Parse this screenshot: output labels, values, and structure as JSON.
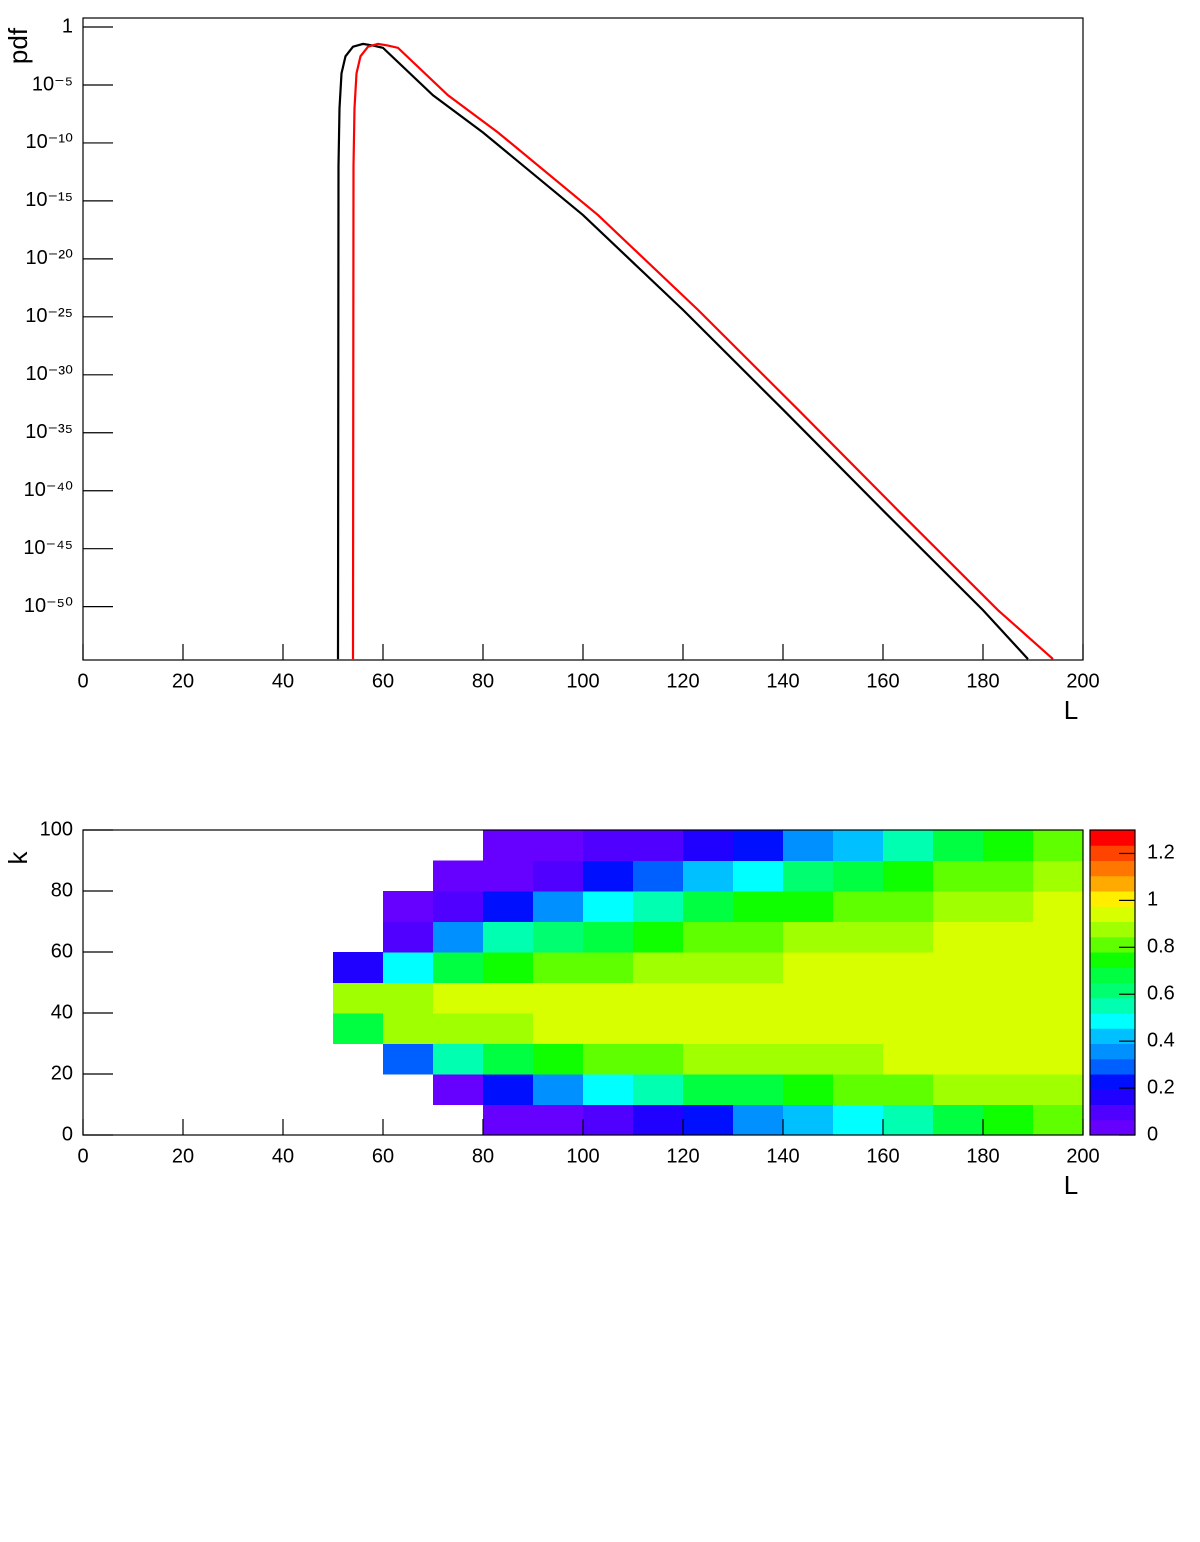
{
  "chart_data": [
    {
      "type": "line",
      "ylabel": "pdf",
      "xlabel": "L",
      "log_y": true,
      "xlim": [
        0,
        200
      ],
      "xticks": [
        0,
        20,
        40,
        60,
        80,
        100,
        120,
        140,
        160,
        180,
        200
      ],
      "ylim": [
        2.5e-55,
        6
      ],
      "yticks": [
        {
          "value": 1,
          "label": "1"
        },
        {
          "value": 1e-05,
          "label": "10⁻⁵"
        },
        {
          "value": 1e-10,
          "label": "10⁻¹⁰"
        },
        {
          "value": 1e-15,
          "label": "10⁻¹⁵"
        },
        {
          "value": 1e-20,
          "label": "10⁻²⁰"
        },
        {
          "value": 1e-25,
          "label": "10⁻²⁵"
        },
        {
          "value": 1e-30,
          "label": "10⁻³⁰"
        },
        {
          "value": 1e-35,
          "label": "10⁻³⁵"
        },
        {
          "value": 1e-40,
          "label": "10⁻⁴⁰"
        },
        {
          "value": 1e-45,
          "label": "10⁻⁴⁵"
        },
        {
          "value": 1e-50,
          "label": "10⁻⁵⁰"
        }
      ],
      "series": [
        {
          "color": "#000000",
          "x": [
            51,
            51.1,
            51.3,
            51.7,
            52.5,
            54,
            56,
            58,
            60,
            70,
            80,
            100,
            120,
            140,
            160,
            180,
            189
          ],
          "values": [
            3e-55,
            1e-12,
            1e-07,
            0.0001,
            0.003,
            0.02,
            0.035,
            0.025,
            0.016,
            1.3e-06,
            8e-10,
            6e-17,
            4e-25,
            1e-33,
            2e-42,
            5e-51,
            3e-55
          ]
        },
        {
          "color": "#ff0000",
          "x": [
            54,
            54.1,
            54.3,
            54.7,
            55.5,
            57,
            59,
            61,
            63,
            73,
            83,
            103,
            123,
            143,
            163,
            183,
            194
          ],
          "values": [
            3e-55,
            1e-12,
            1e-07,
            0.0001,
            0.003,
            0.02,
            0.035,
            0.025,
            0.016,
            1.3e-06,
            8e-10,
            6e-17,
            4e-25,
            1e-33,
            2e-42,
            5e-51,
            3e-55
          ]
        }
      ]
    },
    {
      "type": "heatmap",
      "ylabel": "k",
      "xlabel": "L",
      "xlim": [
        0,
        200
      ],
      "xticks": [
        0,
        20,
        40,
        60,
        80,
        100,
        120,
        140,
        160,
        180,
        200
      ],
      "ylim": [
        0,
        100
      ],
      "yticks": [
        0,
        20,
        40,
        60,
        80,
        100
      ],
      "xbins": [
        50,
        60,
        70,
        80,
        90,
        100,
        110,
        120,
        130,
        140,
        150,
        160,
        170,
        180,
        190,
        200
      ],
      "ybins": [
        0,
        10,
        20,
        30,
        40,
        50,
        60,
        70,
        80,
        90,
        100
      ],
      "z": [
        [
          null,
          null,
          null,
          0.02,
          0.05,
          0.1,
          0.17,
          0.25,
          0.33,
          0.42,
          0.5,
          0.58,
          0.66,
          0.72,
          0.78
        ],
        [
          null,
          null,
          0.05,
          0.2,
          0.35,
          0.47,
          0.57,
          0.65,
          0.7,
          0.75,
          0.79,
          0.82,
          0.85,
          0.87,
          0.9
        ],
        [
          null,
          0.3,
          0.55,
          0.67,
          0.74,
          0.78,
          0.82,
          0.85,
          0.87,
          0.89,
          0.9,
          0.91,
          0.92,
          0.93,
          0.94
        ],
        [
          0.7,
          0.85,
          0.88,
          0.9,
          0.91,
          0.92,
          0.93,
          0.93,
          0.94,
          0.94,
          0.95,
          0.95,
          0.95,
          0.96,
          0.96
        ],
        [
          0.85,
          0.9,
          0.92,
          0.93,
          0.94,
          0.94,
          0.95,
          0.95,
          0.95,
          0.96,
          0.96,
          0.96,
          0.97,
          0.97,
          0.97
        ],
        [
          0.15,
          0.5,
          0.68,
          0.76,
          0.8,
          0.84,
          0.86,
          0.88,
          0.9,
          0.91,
          0.92,
          0.93,
          0.94,
          0.95,
          0.95
        ],
        [
          null,
          0.12,
          0.35,
          0.52,
          0.63,
          0.7,
          0.76,
          0.8,
          0.83,
          0.86,
          0.88,
          0.9,
          0.92,
          0.93,
          0.94
        ],
        [
          null,
          0.02,
          0.1,
          0.22,
          0.35,
          0.47,
          0.57,
          0.65,
          0.72,
          0.77,
          0.8,
          0.84,
          0.87,
          0.9,
          0.92
        ],
        [
          null,
          null,
          0.02,
          0.06,
          0.12,
          0.2,
          0.3,
          0.4,
          0.5,
          0.6,
          0.67,
          0.73,
          0.78,
          0.82,
          0.86
        ],
        [
          null,
          null,
          null,
          0.02,
          0.05,
          0.08,
          0.12,
          0.18,
          0.25,
          0.35,
          0.45,
          0.55,
          0.65,
          0.72,
          0.8
        ]
      ],
      "zlim": [
        0,
        1.3
      ],
      "zticks": [
        0,
        0.2,
        0.4,
        0.6,
        0.8,
        1,
        1.2
      ],
      "colors": [
        "#6600ff",
        "#5000ff",
        "#2000ff",
        "#0010ff",
        "#0060ff",
        "#0090ff",
        "#00c0ff",
        "#00ffff",
        "#00ffb0",
        "#00ff70",
        "#00ff40",
        "#10ff00",
        "#60ff00",
        "#a0ff00",
        "#d8ff00",
        "#ffee00",
        "#ffaa00",
        "#ff7700",
        "#ff4400",
        "#ff0000"
      ]
    }
  ]
}
